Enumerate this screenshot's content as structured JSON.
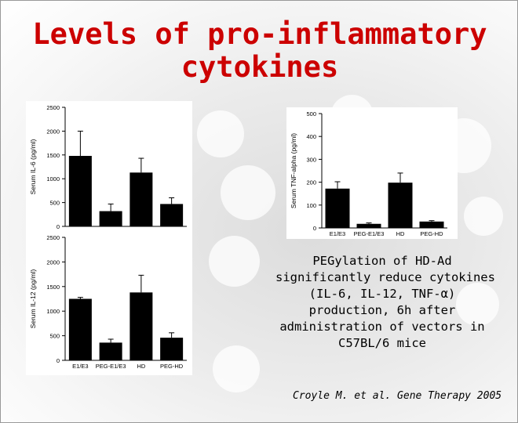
{
  "slide": {
    "title_line1": "Levels of pro-inflammatory",
    "title_line2": "cytokines",
    "summary_lines": [
      "PEGylation of HD-Ad",
      "significantly reduce cytokines",
      "(IL-6, IL-12, TNF-α)",
      "production, 6h after",
      "administration of vectors in",
      "C57BL/6 mice"
    ],
    "citation": "Croyle M. et al. Gene Therapy 2005",
    "colors": {
      "title": "#cc0000",
      "bars": "#000000"
    }
  },
  "chart_data": [
    {
      "type": "bar",
      "ylabel": "Serum IL-6 (pg/ml)",
      "categories": [
        "E1/E3",
        "PEG-E1/E3",
        "HD",
        "PEG-HD"
      ],
      "values": [
        1480,
        320,
        1130,
        470
      ],
      "errors": [
        520,
        150,
        300,
        130
      ],
      "ylim": [
        0,
        2500
      ],
      "yticks": [
        0,
        500,
        1000,
        1500,
        2000,
        2500
      ]
    },
    {
      "type": "bar",
      "ylabel": "Serum TNF-alpha (pg/ml)",
      "categories": [
        "E1/E3",
        "PEG-E1/E3",
        "HD",
        "PEG-HD"
      ],
      "values": [
        172,
        18,
        198,
        28
      ],
      "errors": [
        30,
        4,
        42,
        4
      ],
      "ylim": [
        0,
        500
      ],
      "yticks": [
        0,
        100,
        200,
        300,
        400,
        500
      ]
    },
    {
      "type": "bar",
      "ylabel": "Serum IL-12 (pg/ml)",
      "categories": [
        "E1/E3",
        "PEG-E1/E3",
        "HD",
        "PEG-HD"
      ],
      "values": [
        1250,
        360,
        1380,
        460
      ],
      "errors": [
        30,
        70,
        350,
        100
      ],
      "ylim": [
        0,
        2500
      ],
      "yticks": [
        0,
        500,
        1000,
        1500,
        2000,
        2500
      ]
    }
  ]
}
